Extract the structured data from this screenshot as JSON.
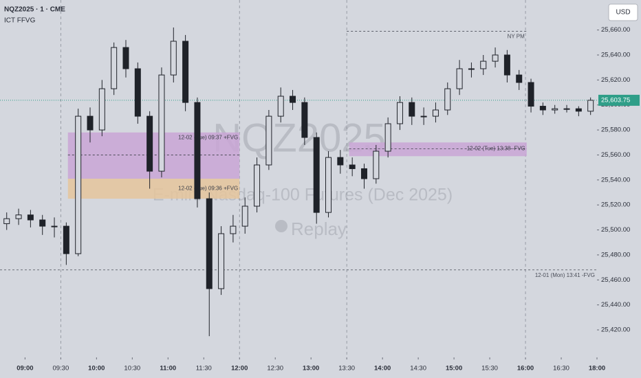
{
  "header": {
    "symbol": "NQZ2025 · 1 · CME",
    "indicator": "ICT FFVG",
    "currency": "USD"
  },
  "watermark": {
    "symbol": "NQZ2025",
    "description": "E-mini Nasdaq-100 Futures (Dec 2025)",
    "mode": "Replay"
  },
  "chart_data": {
    "type": "candlestick",
    "x": [
      -20,
      -10,
      0,
      10,
      20,
      30,
      40,
      50,
      60,
      70,
      80,
      90,
      100,
      110,
      120,
      130,
      140,
      150,
      160,
      170,
      180,
      190,
      200,
      210,
      220,
      230,
      240,
      250,
      260,
      270,
      280,
      290,
      300,
      310,
      320,
      330,
      340,
      350,
      360,
      370,
      380,
      390,
      400,
      410,
      420,
      430,
      440,
      450,
      460,
      470
    ],
    "open": [
      25505,
      25509,
      25512,
      25508,
      25503,
      25503,
      25481,
      25591,
      25580,
      25613,
      25646,
      25629,
      25591,
      25547,
      25624,
      25651,
      25602,
      25525,
      25453,
      25497,
      25503,
      25519,
      25552,
      25591,
      25607,
      25602,
      25574,
      25514,
      25558,
      25552,
      25549,
      25541,
      25563,
      25585,
      25602,
      25591,
      25591,
      25596,
      25613,
      25629,
      25629,
      25635,
      25640,
      25624,
      25618,
      25599,
      25596,
      25597,
      25597,
      25595
    ],
    "high": [
      25514,
      25517,
      25516,
      25512,
      25510,
      25506,
      25597,
      25598,
      25620,
      25650,
      25652,
      25634,
      25595,
      25630,
      25662,
      25656,
      25606,
      25530,
      25503,
      25512,
      25526,
      25558,
      25596,
      25614,
      25612,
      25606,
      25578,
      25563,
      25564,
      25558,
      25553,
      25568,
      25590,
      25607,
      25606,
      25598,
      25602,
      25618,
      25636,
      25634,
      25640,
      25646,
      25644,
      25628,
      25621,
      25602,
      25600,
      25600,
      25599,
      25606
    ],
    "low": [
      25500,
      25504,
      25502,
      25496,
      25494,
      25472,
      25479,
      25570,
      25575,
      25608,
      25622,
      25585,
      25533,
      25542,
      25618,
      25595,
      25518,
      25415,
      25448,
      25490,
      25497,
      25514,
      25548,
      25586,
      25596,
      25568,
      25505,
      25510,
      25545,
      25543,
      25533,
      25537,
      25558,
      25580,
      25584,
      25584,
      25586,
      25592,
      25608,
      25622,
      25624,
      25630,
      25618,
      25612,
      25594,
      25592,
      25593,
      25594,
      25591,
      25592
    ],
    "close": [
      25509,
      25512,
      25508,
      25503,
      25503,
      25481,
      25591,
      25580,
      25613,
      25646,
      25629,
      25591,
      25547,
      25624,
      25651,
      25602,
      25525,
      25453,
      25497,
      25503,
      25519,
      25552,
      25591,
      25607,
      25602,
      25574,
      25514,
      25558,
      25552,
      25549,
      25541,
      25563,
      25585,
      25602,
      25591,
      25591,
      25596,
      25613,
      25629,
      25629,
      25635,
      25640,
      25624,
      25618,
      25599,
      25596,
      25597,
      25597,
      25595,
      25603.75
    ],
    "color": "#1f2229",
    "xlim": [
      -21,
      480
    ],
    "xticks": [
      {
        "value": 0,
        "label": "09:00"
      },
      {
        "value": 30,
        "label": "09:30"
      },
      {
        "value": 60,
        "label": "10:00"
      },
      {
        "value": 90,
        "label": "10:30"
      },
      {
        "value": 120,
        "label": "11:00"
      },
      {
        "value": 150,
        "label": "11:30"
      },
      {
        "value": 180,
        "label": "12:00"
      },
      {
        "value": 210,
        "label": "12:30"
      },
      {
        "value": 240,
        "label": "13:00"
      },
      {
        "value": 270,
        "label": "13:30"
      },
      {
        "value": 300,
        "label": "14:00"
      },
      {
        "value": 330,
        "label": "14:30"
      },
      {
        "value": 360,
        "label": "15:00"
      },
      {
        "value": 390,
        "label": "15:30"
      },
      {
        "value": 420,
        "label": "16:00"
      },
      {
        "value": 450,
        "label": "16:30"
      },
      {
        "value": 480,
        "label": "18:00"
      }
    ],
    "ylim": [
      25398,
      25684
    ],
    "yticks": [
      {
        "value": 25420,
        "label": "25,420.00"
      },
      {
        "value": 25440,
        "label": "25,440.00"
      },
      {
        "value": 25460,
        "label": "25,460.00"
      },
      {
        "value": 25480,
        "label": "25,480.00"
      },
      {
        "value": 25500,
        "label": "25,500.00"
      },
      {
        "value": 25520,
        "label": "25,520.00"
      },
      {
        "value": 25540,
        "label": "25,540.00"
      },
      {
        "value": 25560,
        "label": "25,560.00"
      },
      {
        "value": 25580,
        "label": "25,580.00"
      },
      {
        "value": 25600,
        "label": "25,600.00"
      },
      {
        "value": 25620,
        "label": "25,620.00"
      },
      {
        "value": 25640,
        "label": "25,640.00"
      },
      {
        "value": 25660,
        "label": "25,660.00"
      }
    ],
    "session_lines": [
      30,
      180,
      270,
      420
    ],
    "last_price": {
      "value": 25603.75,
      "label": "25,603.75",
      "color": "#2f9e88"
    },
    "zones": [
      {
        "label": "12-02 (Tue) 09:37 +FVG",
        "start": 36,
        "end": 180,
        "top": 25578,
        "bottom": 25541,
        "mid": 25560,
        "color": "#c9a6d6"
      },
      {
        "label": "12-02 (Tue) 09:36 +FVG",
        "start": 36,
        "end": 180,
        "top": 25541,
        "bottom": 25525,
        "color": "#e5c59c"
      },
      {
        "label": "12-02 (Tue) 13:38 -FVG",
        "start": 272,
        "end": 421,
        "top": 25570,
        "bottom": 25559,
        "mid": 25565,
        "color": "#c9a6d6"
      }
    ],
    "levels": [
      {
        "label": "12-01 (Mon) 13:41 -FVG",
        "start": -21,
        "end": 480,
        "value": 25468
      },
      {
        "label": "NY PM",
        "start": 270,
        "end": 421,
        "value": 25659
      }
    ]
  }
}
